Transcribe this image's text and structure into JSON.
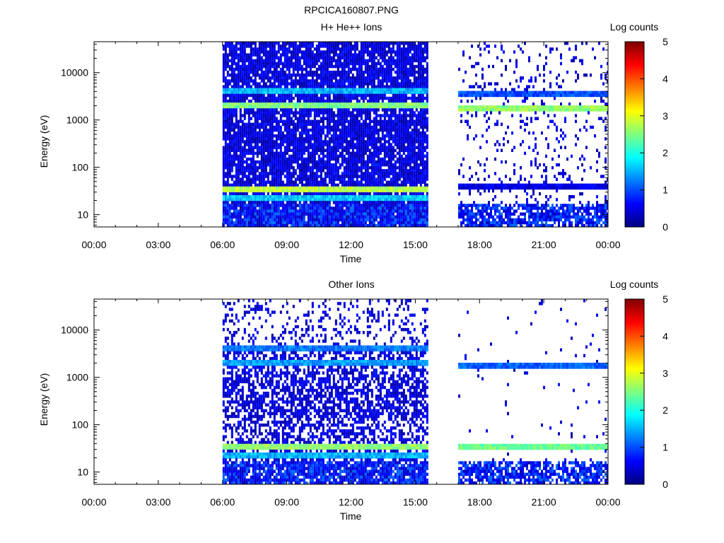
{
  "figure": {
    "title": "RPCICA160807.PNG"
  },
  "colorbar": {
    "label": "Log counts",
    "ticks": [
      "0",
      "1",
      "2",
      "3",
      "4",
      "5"
    ],
    "range": [
      0,
      5
    ],
    "colormap": [
      "#00007f",
      "#0000ff",
      "#007fff",
      "#00ffff",
      "#7fff7f",
      "#ffff00",
      "#ff7f00",
      "#ff0000",
      "#7f0000"
    ]
  },
  "chart_data": [
    {
      "type": "heatmap",
      "title": "H+ He++ Ions",
      "xlabel": "Time",
      "ylabel": "Energy (eV)",
      "x_ticks": [
        "00:00",
        "03:00",
        "06:00",
        "09:00",
        "12:00",
        "15:00",
        "18:00",
        "21:00",
        "00:00"
      ],
      "y_ticks": [
        "10",
        "100",
        "1000",
        "10000"
      ],
      "y_scale": "log",
      "ylim": [
        5.5,
        45000
      ],
      "xlim_hours": [
        0,
        24
      ],
      "data_intervals_hours": [
        [
          6.0,
          15.6
        ],
        [
          17.0,
          24.0
        ]
      ],
      "bands": [
        {
          "energy_eV": 4000,
          "log_counts": 1.5,
          "hours": [
            6.0,
            15.6
          ]
        },
        {
          "energy_eV": 2000,
          "log_counts": 2.5,
          "hours": [
            6.0,
            15.6
          ]
        },
        {
          "energy_eV": 35,
          "log_counts": 2.8,
          "hours": [
            6.0,
            15.6
          ]
        },
        {
          "energy_eV": 22,
          "log_counts": 1.6,
          "hours": [
            6.0,
            15.6
          ]
        },
        {
          "energy_eV": 3800,
          "log_counts": 1.0,
          "hours": [
            17.0,
            24.0
          ]
        },
        {
          "energy_eV": 1800,
          "log_counts": 2.6,
          "hours": [
            17.0,
            24.0
          ]
        },
        {
          "energy_eV": 42,
          "log_counts": 0.5,
          "hours": [
            17.0,
            24.0
          ]
        }
      ],
      "colorbar_label": "Log counts"
    },
    {
      "type": "heatmap",
      "title": "Other Ions",
      "xlabel": "Time",
      "ylabel": "Energy (eV)",
      "x_ticks": [
        "00:00",
        "03:00",
        "06:00",
        "09:00",
        "12:00",
        "15:00",
        "18:00",
        "21:00",
        "00:00"
      ],
      "y_ticks": [
        "10",
        "100",
        "1000",
        "10000"
      ],
      "y_scale": "log",
      "ylim": [
        5.5,
        45000
      ],
      "xlim_hours": [
        0,
        24
      ],
      "data_intervals_hours": [
        [
          6.0,
          15.6
        ],
        [
          17.0,
          24.0
        ]
      ],
      "bands": [
        {
          "energy_eV": 4000,
          "log_counts": 1.2,
          "hours": [
            6.0,
            15.6
          ]
        },
        {
          "energy_eV": 1900,
          "log_counts": 1.4,
          "hours": [
            6.0,
            15.6
          ]
        },
        {
          "energy_eV": 35,
          "log_counts": 2.6,
          "hours": [
            6.0,
            15.6
          ]
        },
        {
          "energy_eV": 22,
          "log_counts": 1.5,
          "hours": [
            6.0,
            15.6
          ]
        },
        {
          "energy_eV": 1800,
          "log_counts": 1.1,
          "hours": [
            17.0,
            24.0
          ]
        },
        {
          "energy_eV": 35,
          "log_counts": 2.4,
          "hours": [
            17.0,
            24.0
          ]
        }
      ],
      "colorbar_label": "Log counts"
    }
  ]
}
